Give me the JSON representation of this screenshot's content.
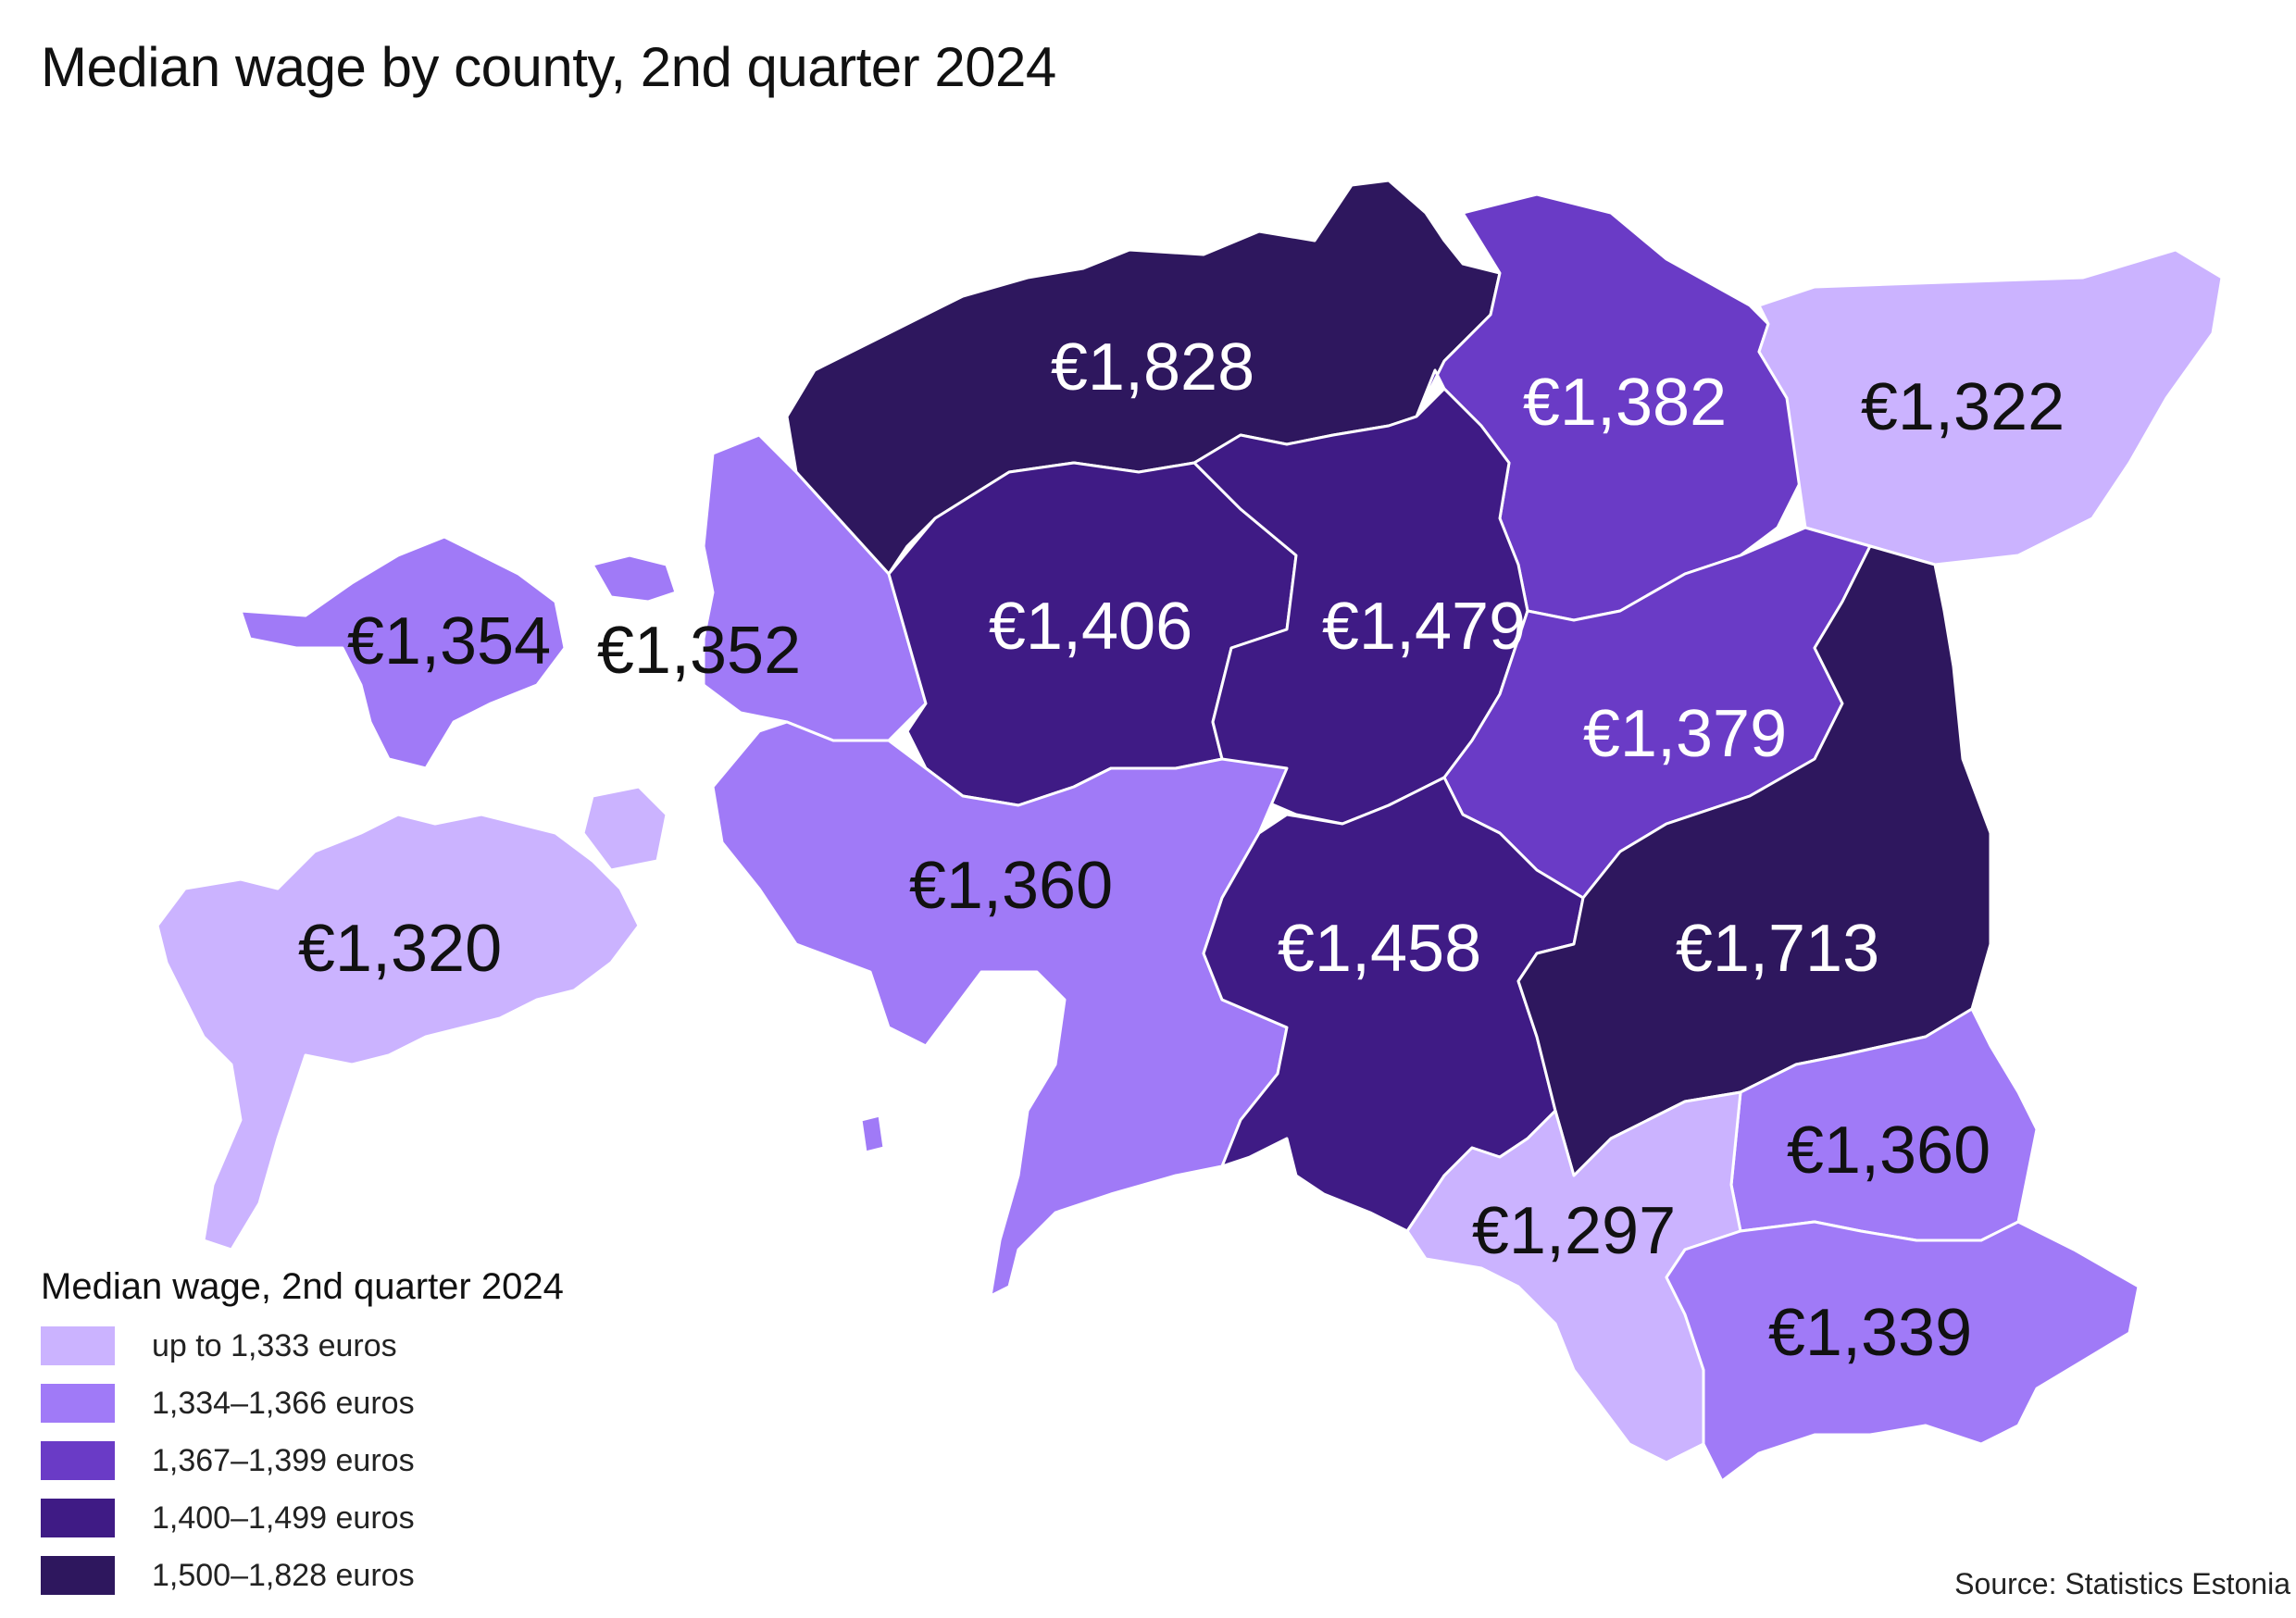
{
  "title": "Median wage by county, 2nd quarter 2024",
  "source": "Source: Statistics Estonia",
  "legend": {
    "title": "Median wage, 2nd quarter 2024",
    "items": [
      {
        "label": "up to 1,333 euros",
        "color": "#cbb3ff"
      },
      {
        "label": "1,334–1,366 euros",
        "color": "#a07af7"
      },
      {
        "label": "1,367–1,399 euros",
        "color": "#6a3bc6"
      },
      {
        "label": "1,400–1,499 euros",
        "color": "#3f1b85"
      },
      {
        "label": "1,500–1,828 euros",
        "color": "#2e175e"
      }
    ]
  },
  "regions": [
    {
      "value": "€1,828",
      "color": "#2e175e"
    },
    {
      "value": "€1,382",
      "color": "#6a3bc6"
    },
    {
      "value": "€1,322",
      "color": "#cbb3ff"
    },
    {
      "value": "€1,354",
      "color": "#a07af7"
    },
    {
      "value": "€1,352",
      "color": "#a07af7"
    },
    {
      "value": "€1,406",
      "color": "#3f1b85"
    },
    {
      "value": "€1,479",
      "color": "#3f1b85"
    },
    {
      "value": "€1,379",
      "color": "#6a3bc6"
    },
    {
      "value": "€1,320",
      "color": "#cbb3ff"
    },
    {
      "value": "€1,360",
      "color": "#a07af7"
    },
    {
      "value": "€1,458",
      "color": "#3f1b85"
    },
    {
      "value": "€1,713",
      "color": "#2e175e"
    },
    {
      "value": "€1,360",
      "color": "#a07af7"
    },
    {
      "value": "€1,297",
      "color": "#cbb3ff"
    },
    {
      "value": "€1,339",
      "color": "#a07af7"
    }
  ]
}
